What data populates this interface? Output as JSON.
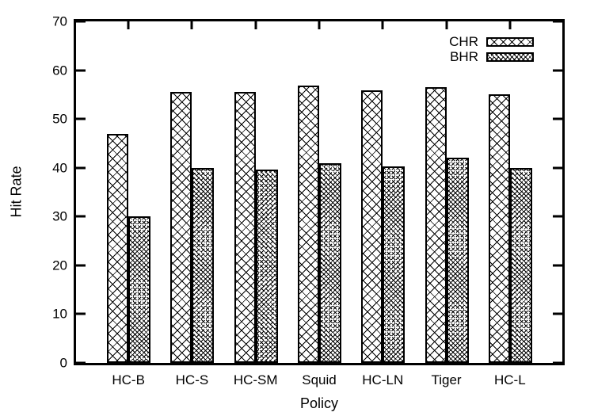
{
  "chart_data": {
    "type": "bar",
    "title": "",
    "xlabel": "Policy",
    "ylabel": "Hit Rate",
    "categories": [
      "HC-B",
      "HC-S",
      "HC-SM",
      "Squid",
      "HC-LN",
      "Tiger",
      "HC-L"
    ],
    "series": [
      {
        "name": "CHR",
        "pattern": "coarse-crosshatch",
        "values": [
          46.9,
          55.5,
          55.5,
          56.9,
          55.8,
          56.5,
          55.0
        ]
      },
      {
        "name": "BHR",
        "pattern": "fine-crosshatch-dotted",
        "values": [
          30.0,
          40.0,
          39.7,
          40.9,
          40.3,
          42.0,
          39.9
        ]
      }
    ],
    "ylim": [
      0,
      70
    ],
    "yticks": [
      0,
      10,
      20,
      30,
      40,
      50,
      60,
      70
    ],
    "grid": false,
    "legend_position": "top-right",
    "colors": {
      "foreground": "#000000",
      "background": "#ffffff"
    }
  }
}
